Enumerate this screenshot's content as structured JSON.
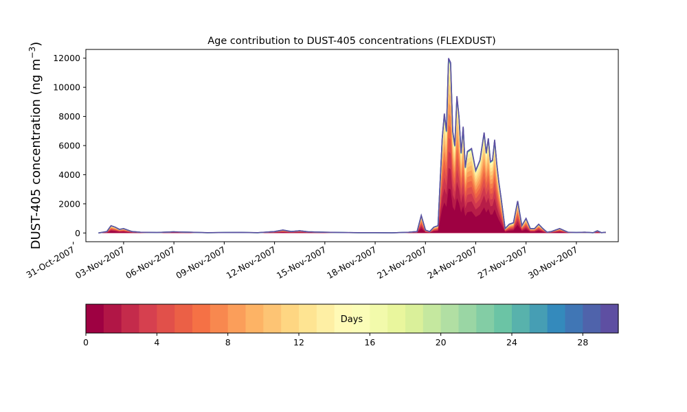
{
  "chart_data": {
    "type": "area",
    "title": "Age contribution to DUST-405 concentrations (FLEXDUST)",
    "ylabel": "DUST-405 concentration (ng m",
    "ylabel_exponent": "−3",
    "ylabel_suffix": ")",
    "xlabel": "",
    "ylim": [
      -600,
      12600
    ],
    "yticks": [
      0,
      2000,
      4000,
      6000,
      8000,
      10000,
      12000
    ],
    "xlim": [
      "2007-10-31T18:00",
      "2007-12-02T12:00"
    ],
    "xtick_labels": [
      "31-Oct-2007",
      "03-Nov-2007",
      "06-Nov-2007",
      "09-Nov-2007",
      "12-Nov-2007",
      "15-Nov-2007",
      "18-Nov-2007",
      "21-Nov-2007",
      "24-Nov-2007",
      "27-Nov-2007",
      "30-Nov-2007"
    ],
    "xtick_dates": [
      "2007-10-31",
      "2007-11-03",
      "2007-11-06",
      "2007-11-09",
      "2007-11-12",
      "2007-11-15",
      "2007-11-18",
      "2007-11-21",
      "2007-11-24",
      "2007-11-27",
      "2007-11-30"
    ],
    "grid": false,
    "total": {
      "x": [
        "2007-11-01T12:00",
        "2007-11-02T00:00",
        "2007-11-02T06:00",
        "2007-11-02T12:00",
        "2007-11-02T18:00",
        "2007-11-03T00:00",
        "2007-11-03T12:00",
        "2007-11-04T00:00",
        "2007-11-05T00:00",
        "2007-11-06T00:00",
        "2007-11-07T00:00",
        "2007-11-08T00:00",
        "2007-11-09T00:00",
        "2007-11-10T00:00",
        "2007-11-11T00:00",
        "2007-11-12T00:00",
        "2007-11-12T12:00",
        "2007-11-13T00:00",
        "2007-11-13T12:00",
        "2007-11-14T00:00",
        "2007-11-15T00:00",
        "2007-11-16T00:00",
        "2007-11-17T00:00",
        "2007-11-18T00:00",
        "2007-11-19T00:00",
        "2007-11-20T00:00",
        "2007-11-20T12:00",
        "2007-11-20T18:00",
        "2007-11-21T00:00",
        "2007-11-21T06:00",
        "2007-11-21T12:00",
        "2007-11-21T18:00",
        "2007-11-22T00:00",
        "2007-11-22T03:00",
        "2007-11-22T06:00",
        "2007-11-22T09:00",
        "2007-11-22T12:00",
        "2007-11-22T15:00",
        "2007-11-22T18:00",
        "2007-11-22T21:00",
        "2007-11-23T00:00",
        "2007-11-23T03:00",
        "2007-11-23T06:00",
        "2007-11-23T09:00",
        "2007-11-23T12:00",
        "2007-11-23T18:00",
        "2007-11-24T00:00",
        "2007-11-24T06:00",
        "2007-11-24T12:00",
        "2007-11-24T15:00",
        "2007-11-24T18:00",
        "2007-11-24T21:00",
        "2007-11-25T00:00",
        "2007-11-25T03:00",
        "2007-11-25T06:00",
        "2007-11-25T09:00",
        "2007-11-25T12:00",
        "2007-11-25T18:00",
        "2007-11-26T00:00",
        "2007-11-26T06:00",
        "2007-11-26T12:00",
        "2007-11-26T18:00",
        "2007-11-27T00:00",
        "2007-11-27T06:00",
        "2007-11-27T12:00",
        "2007-11-27T18:00",
        "2007-11-28T00:00",
        "2007-11-28T06:00",
        "2007-11-28T12:00",
        "2007-11-29T00:00",
        "2007-11-29T12:00",
        "2007-11-30T00:00",
        "2007-11-30T12:00",
        "2007-12-01T00:00",
        "2007-12-01T06:00",
        "2007-12-01T12:00",
        "2007-12-01T18:00"
      ],
      "values": [
        0,
        100,
        500,
        400,
        250,
        300,
        100,
        50,
        30,
        80,
        50,
        20,
        30,
        40,
        20,
        100,
        200,
        100,
        150,
        80,
        50,
        30,
        20,
        20,
        10,
        50,
        100,
        1200,
        200,
        100,
        400,
        500,
        6500,
        8200,
        7000,
        12000,
        11700,
        7000,
        6000,
        9400,
        8000,
        5500,
        7300,
        4500,
        5600,
        5800,
        4300,
        5000,
        6900,
        5500,
        6500,
        4900,
        5000,
        6400,
        4800,
        3500,
        2500,
        300,
        600,
        700,
        2200,
        500,
        1000,
        300,
        300,
        600,
        300,
        50,
        100,
        300,
        50,
        30,
        50,
        20,
        150,
        20,
        50
      ]
    },
    "colorbar": {
      "label": "Days",
      "ticks": [
        0,
        4,
        8,
        12,
        16,
        20,
        24,
        28
      ],
      "range": [
        0,
        30
      ],
      "n_bins": 30,
      "colormap": "Spectral",
      "reversed": true
    },
    "series_colors": [
      "#9e0142",
      "#d53e4f",
      "#f46d43",
      "#fdae61",
      "#fee08b",
      "#ffffbf",
      "#e6f598",
      "#abdda4",
      "#66c2a5",
      "#3288bd",
      "#5e4fa2"
    ]
  }
}
